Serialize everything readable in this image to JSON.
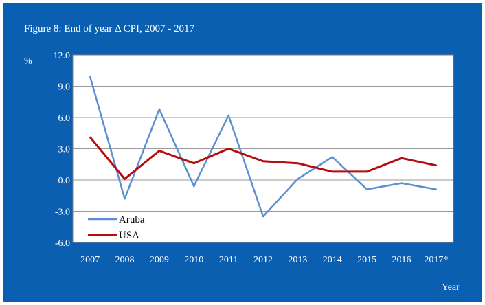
{
  "title": "Figure 8: End of year Δ CPI, 2007 - 2017",
  "colors": {
    "background": "#0b5fb1",
    "plot_area": "#ffffff",
    "aruba": "#5b8fd0",
    "usa": "#b50c0c",
    "gridline": "#9a9a9a"
  },
  "chart_data": {
    "type": "line",
    "categories": [
      "2007",
      "2008",
      "2009",
      "2010",
      "2011",
      "2012",
      "2013",
      "2014",
      "2015",
      "2016",
      "2017*"
    ],
    "series": [
      {
        "name": "Aruba",
        "values": [
          9.9,
          -1.8,
          6.8,
          -0.6,
          6.2,
          -3.5,
          0.1,
          2.2,
          -0.9,
          -0.3,
          -0.9
        ]
      },
      {
        "name": "USA",
        "values": [
          4.1,
          0.1,
          2.8,
          1.6,
          3.0,
          1.8,
          1.6,
          0.8,
          0.8,
          2.1,
          1.4
        ]
      }
    ],
    "ylim": [
      -6.0,
      12.0
    ],
    "yticks": [
      "12.0",
      "9.0",
      "6.0",
      "3.0",
      "0.0",
      "-3.0",
      "-6.0"
    ],
    "ylabel": "%",
    "xlabel": "Year",
    "grid": true,
    "legend": "bottom-left"
  }
}
